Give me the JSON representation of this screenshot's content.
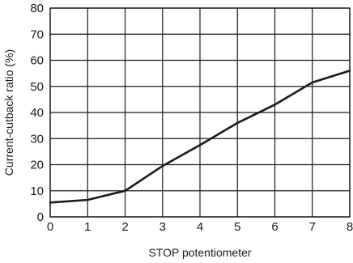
{
  "chart_data": {
    "type": "line",
    "title": "",
    "xlabel": "STOP potentiometer",
    "ylabel": "Current-cutback ratio (%)",
    "xlim": [
      0,
      8
    ],
    "ylim": [
      0,
      80
    ],
    "x_ticks": [
      "0",
      "1",
      "2",
      "3",
      "4",
      "5",
      "6",
      "7",
      "8"
    ],
    "y_ticks": [
      "0",
      "10",
      "20",
      "30",
      "40",
      "50",
      "60",
      "70",
      "80"
    ],
    "grid": true,
    "legend": "none",
    "series": [
      {
        "x": [
          0,
          1,
          2,
          3,
          4,
          5,
          6,
          7,
          8
        ],
        "y": [
          5.5,
          6.5,
          10,
          19.5,
          27.5,
          36,
          43,
          51.5,
          56
        ],
        "color": "#1a1a1a"
      }
    ]
  }
}
